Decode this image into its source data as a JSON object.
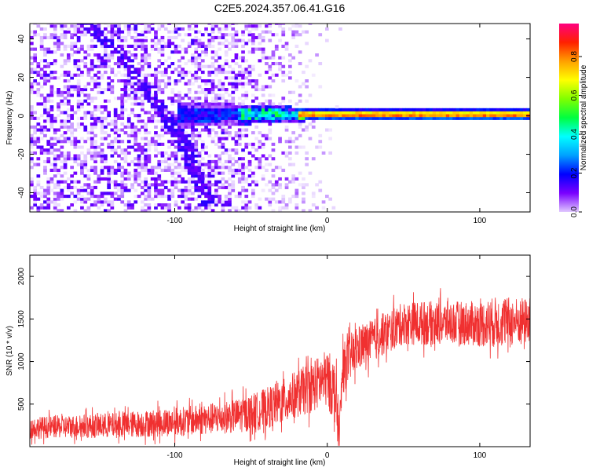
{
  "title": "C2E5.2024.357.06.41.G16",
  "chart_data": [
    {
      "type": "heatmap",
      "title": "C2E5.2024.357.06.41.G16",
      "xlabel": "Height of straight line (km)",
      "ylabel": "Frequency (Hz)",
      "xlim": [
        -195,
        133
      ],
      "ylim": [
        -50,
        48
      ],
      "x_ticks": [
        -100,
        0,
        100
      ],
      "y_ticks": [
        -40,
        -20,
        0,
        20,
        40
      ],
      "colorbar": {
        "label": "Normalized spectral amplitude",
        "range": [
          0.0,
          0.97
        ],
        "ticks": [
          0.0,
          0.2,
          0.4,
          0.6,
          0.8
        ],
        "colors": [
          "#ffffff",
          "#e0c8ff",
          "#7a00ff",
          "#0000ff",
          "#00a0ff",
          "#00ffff",
          "#00ff40",
          "#80ff00",
          "#ffff00",
          "#ffa000",
          "#ff2000",
          "#ff0080"
        ]
      },
      "features": [
        {
          "name": "noise-region",
          "x_range": [
            -195,
            -20
          ],
          "y_range": [
            -50,
            48
          ],
          "level": 0.15
        },
        {
          "name": "chirp-line",
          "points": [
            [
              -160,
              48
            ],
            [
              -135,
              30
            ],
            [
              -112,
              5
            ],
            [
              -95,
              -15
            ],
            [
              -85,
              -35
            ],
            [
              -78,
              -48
            ]
          ],
          "level": 0.2
        },
        {
          "name": "carrier-line",
          "y": 0,
          "x_range": [
            -100,
            133
          ],
          "peak_level": 0.9
        }
      ]
    },
    {
      "type": "line",
      "xlabel": "Height of straight line (km)",
      "ylabel": "SNR (10 * v/v)",
      "xlim": [
        -195,
        133
      ],
      "ylim": [
        0,
        2250
      ],
      "x_ticks": [
        -100,
        0,
        100
      ],
      "y_ticks": [
        500,
        1000,
        1500,
        2000
      ],
      "color": "#f03030",
      "series": [
        {
          "x": [
            -195,
            -180,
            -160,
            -140,
            -120,
            -100,
            -80,
            -60,
            -45,
            -30,
            -20,
            -10,
            -5,
            0,
            5,
            8,
            10,
            15,
            20,
            30,
            40,
            50,
            60,
            70,
            80,
            90,
            100,
            110,
            120,
            133
          ],
          "values": [
            220,
            230,
            240,
            250,
            270,
            290,
            320,
            360,
            420,
            520,
            620,
            700,
            760,
            800,
            650,
            120,
            900,
            1050,
            1150,
            1250,
            1350,
            1450,
            1450,
            1450,
            1460,
            1450,
            1440,
            1460,
            1470,
            1480
          ],
          "spread": [
            130,
            130,
            140,
            150,
            160,
            170,
            180,
            200,
            230,
            260,
            280,
            300,
            320,
            340,
            380,
            300,
            300,
            280,
            260,
            250,
            250,
            250,
            260,
            260,
            250,
            260,
            270,
            300,
            290,
            270
          ]
        }
      ]
    }
  ]
}
